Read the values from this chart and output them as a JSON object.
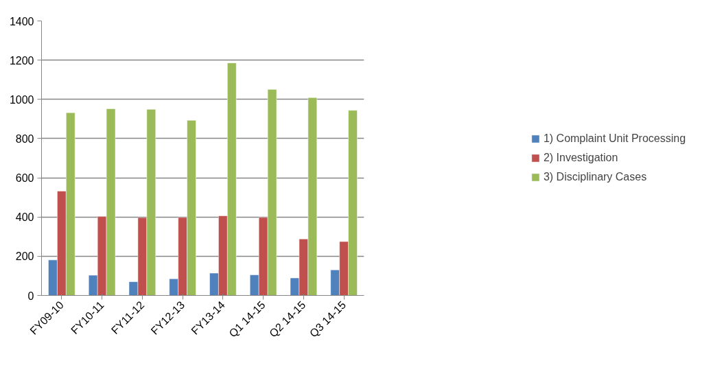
{
  "chart_data": {
    "type": "bar",
    "categories": [
      "FY09-10",
      "FY10-11",
      "FY11-12",
      "FY12-13",
      "FY13-14",
      "Q1 14-15",
      "Q2 14-15",
      "Q3 14-15"
    ],
    "series": [
      {
        "name": "1) Complaint Unit Processing",
        "color": "#4f81bd",
        "values": [
          181,
          103,
          70,
          85,
          114,
          105,
          89,
          130
        ]
      },
      {
        "name": "2) Investigation",
        "color": "#c0504d",
        "values": [
          532,
          403,
          397,
          398,
          406,
          398,
          288,
          275
        ]
      },
      {
        "name": "3) Disciplinary Cases",
        "color": "#9bbb59",
        "values": [
          932,
          952,
          949,
          893,
          1186,
          1051,
          1009,
          944
        ]
      }
    ],
    "ylim": [
      0,
      1400
    ],
    "yticks": [
      0,
      200,
      400,
      600,
      800,
      1000,
      1200,
      1400
    ],
    "grid": "y",
    "legend": "right"
  }
}
